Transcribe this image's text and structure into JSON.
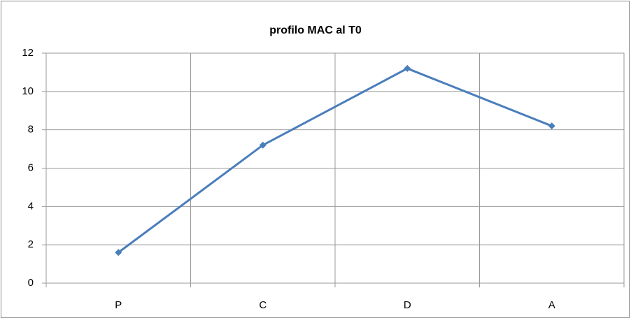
{
  "chart_data": {
    "type": "line",
    "title": "profilo MAC al T0",
    "categories": [
      "P",
      "C",
      "D",
      "A"
    ],
    "series": [
      {
        "name": "profilo MAC al T0",
        "color": "#4a7ebb",
        "values": [
          1.6,
          7.2,
          11.2,
          8.2
        ]
      }
    ],
    "ylim": [
      0,
      12
    ],
    "yticks": [
      0,
      2,
      4,
      6,
      8,
      10,
      12
    ],
    "grid": true
  }
}
